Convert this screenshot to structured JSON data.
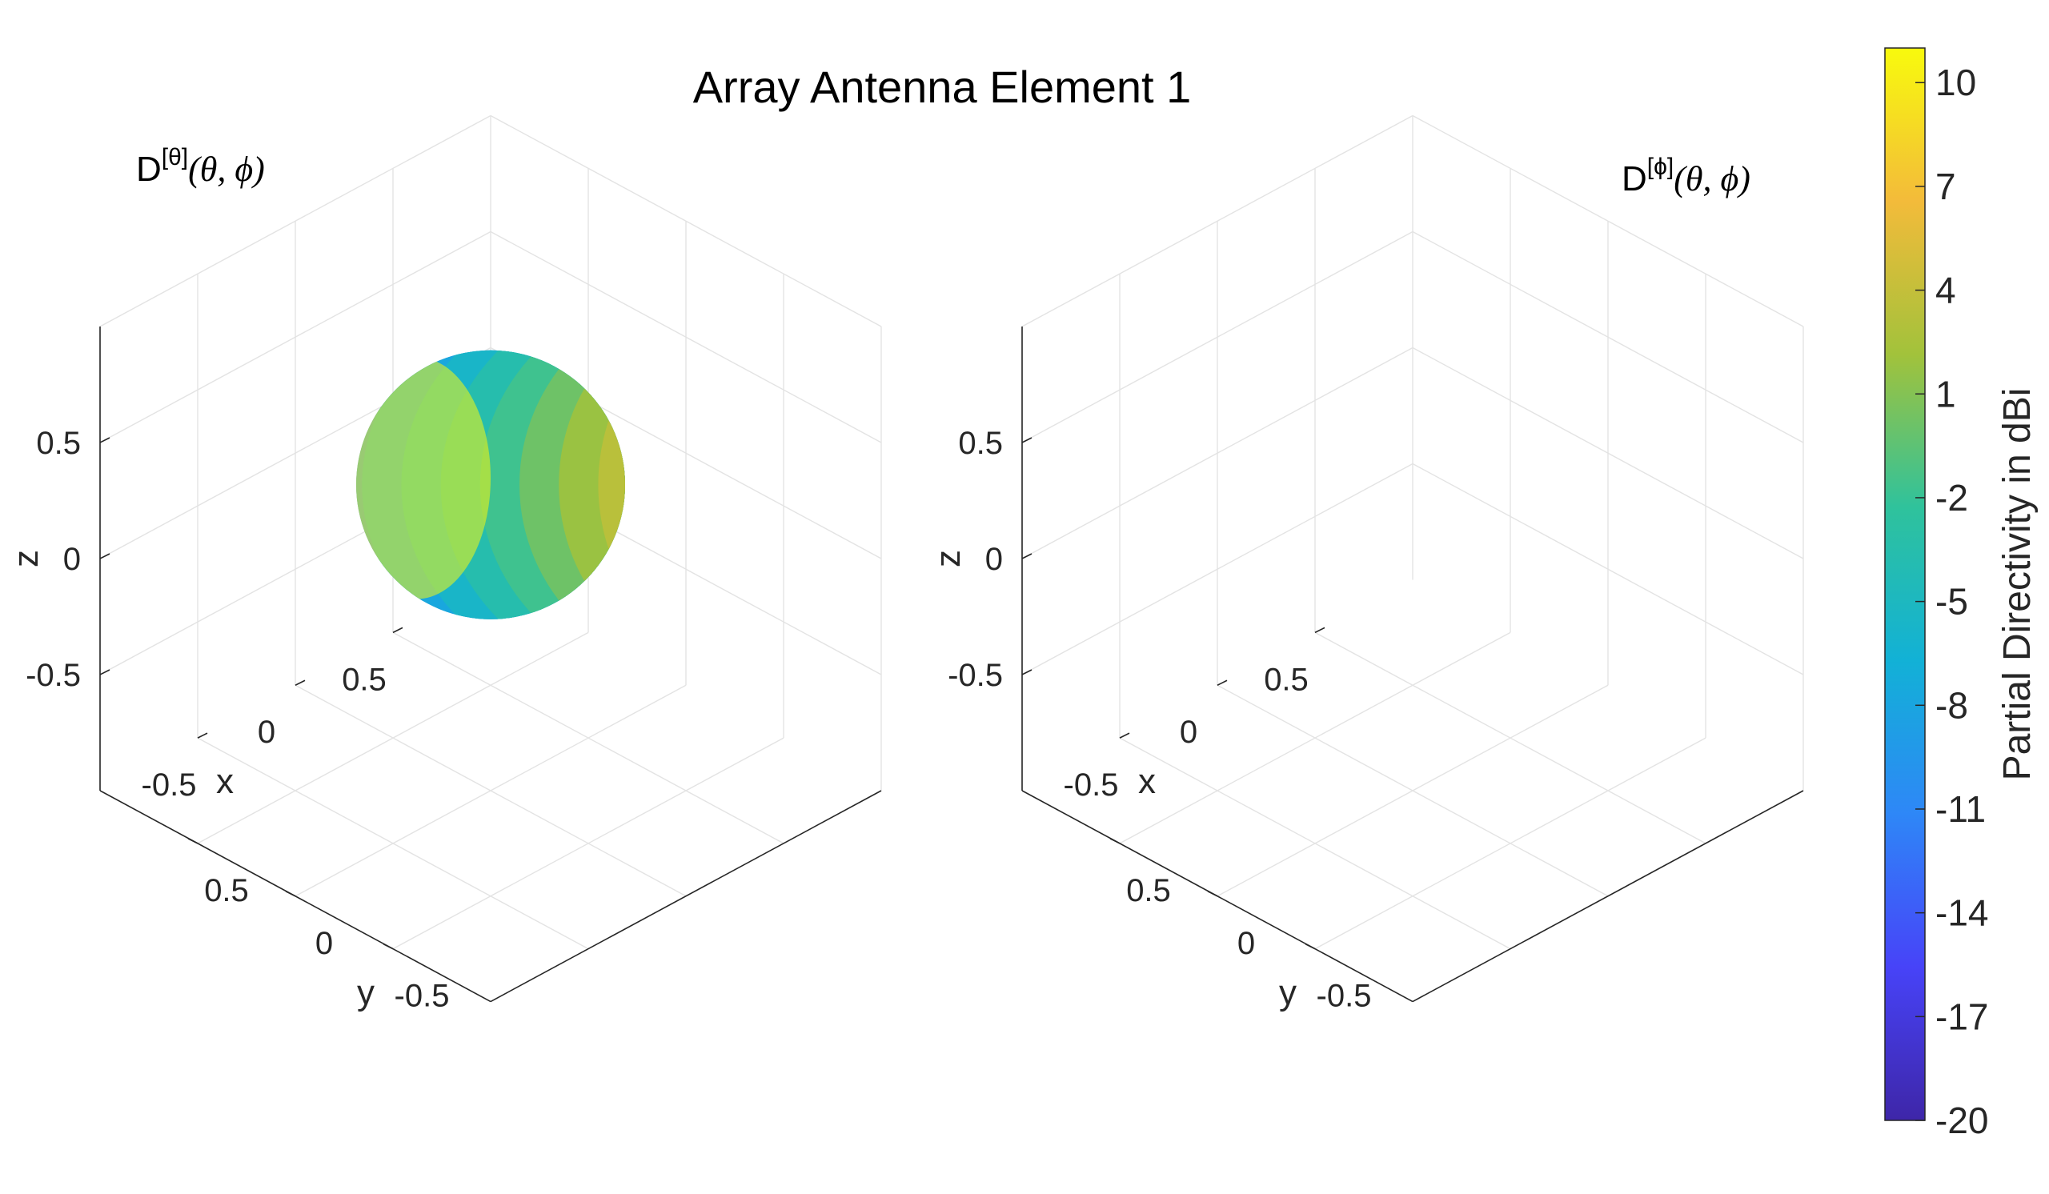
{
  "chart_data": {
    "type": "surface3d",
    "title": "Array Antenna Element 1",
    "panels": [
      {
        "id": "theta",
        "title_base": "D",
        "title_sup": "[θ]",
        "title_args": "(θ, ϕ)",
        "xlabel": "x",
        "ylabel": "y",
        "zlabel": "z",
        "x_ticks": [
          "-0.5",
          "0",
          "0.5"
        ],
        "y_ticks": [
          "-0.5",
          "0",
          "0.5"
        ],
        "z_ticks": [
          "0.5",
          "0",
          "-0.5"
        ],
        "xlim": [
          -1,
          1
        ],
        "ylim": [
          -1,
          1
        ],
        "zlim": [
          -1,
          1
        ],
        "surface": {
          "shape": "sphere",
          "center": [
            -0.35,
            -0.35,
            0
          ],
          "radius": 0.5,
          "directivity_max_dBi": 10,
          "directivity_min_dBi": -10
        }
      },
      {
        "id": "phi",
        "title_base": "D",
        "title_sup": "[ϕ]",
        "title_args": "(θ, ϕ)",
        "xlabel": "x",
        "ylabel": "y",
        "zlabel": "z",
        "x_ticks": [
          "-0.5",
          "0",
          "0.5"
        ],
        "y_ticks": [
          "-0.5",
          "0",
          "0.5"
        ],
        "z_ticks": [
          "0.5",
          "0",
          "-0.5"
        ],
        "xlim": [
          -1,
          1
        ],
        "ylim": [
          -1,
          1
        ],
        "zlim": [
          -1,
          1
        ],
        "surface": null
      }
    ],
    "colorbar": {
      "label": "Partial Directivity in dBi",
      "ticks": [
        "10",
        "7",
        "4",
        "1",
        "-2",
        "-5",
        "-8",
        "-11",
        "-14",
        "-17",
        "-20"
      ],
      "range": [
        -20,
        11
      ],
      "colormap": "parula",
      "colors": [
        "#3e26a8",
        "#4743f8",
        "#2e87f7",
        "#12b1d6",
        "#2fc29c",
        "#a2c23b",
        "#f3bb3a",
        "#f8fa0d"
      ]
    },
    "grid": true
  }
}
